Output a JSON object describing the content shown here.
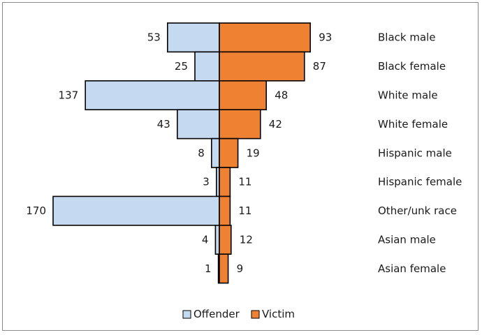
{
  "chart_data": {
    "type": "bar",
    "orientation": "horizontal-diverging",
    "categories": [
      "Black male",
      "Black female",
      "White male",
      "White female",
      "Hispanic male",
      "Hispanic female",
      "Other/unk race",
      "Asian male",
      "Asian female"
    ],
    "series": [
      {
        "name": "Offender",
        "values": [
          53,
          25,
          137,
          43,
          8,
          3,
          170,
          4,
          1
        ],
        "color": "#c5daf0",
        "side": "left"
      },
      {
        "name": "Victim",
        "values": [
          93,
          87,
          48,
          42,
          19,
          11,
          11,
          12,
          9
        ],
        "color": "#ef8132",
        "side": "right"
      }
    ],
    "legend": "bottom-center",
    "grid": false,
    "title": "",
    "xlabel": "",
    "ylabel": ""
  }
}
